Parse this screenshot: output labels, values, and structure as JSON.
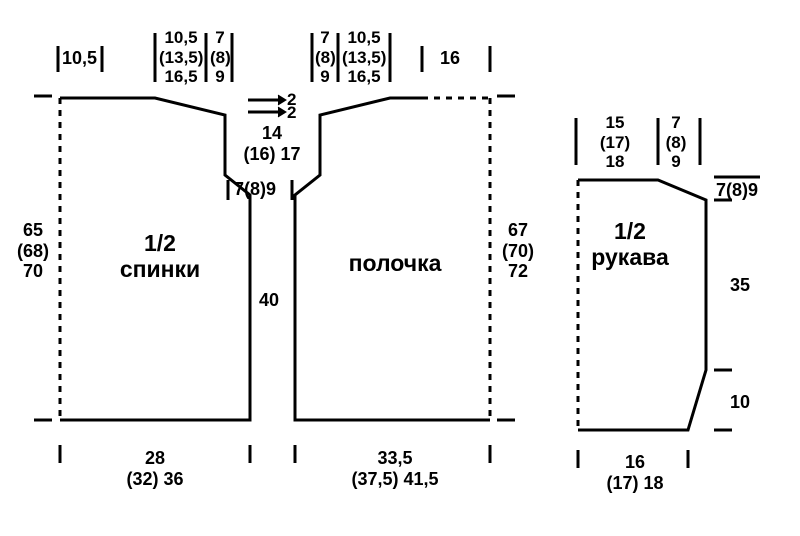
{
  "colors": {
    "stroke": "#000000",
    "background": "#ffffff"
  },
  "stroke_width": 3,
  "dash": "6,6",
  "pieces": {
    "back": {
      "label_top": "1/2",
      "label_bottom": "спинки"
    },
    "front": {
      "label": "полочка"
    },
    "sleeve": {
      "label_top": "1/2",
      "label_bottom": "рукава"
    }
  },
  "measurements": {
    "back_top_shoulder": "10,5",
    "back_top_neck": "10,5\n(13,5)\n16,5",
    "back_top_armhole": "7\n(8)\n9",
    "back_left_height": "65\n(68)\n70",
    "back_bottom_width": "28\n(32) 36",
    "center_arrows_a": "2",
    "center_arrows_b": "2",
    "center_armhole_height": "14\n(16) 17",
    "center_armhole_width": "7(8)9",
    "center_body": "40",
    "front_top_armhole": "7\n(8)\n9",
    "front_top_neck": "10,5\n(13,5)\n16,5",
    "front_top_flat": "16",
    "front_right_height": "67\n(70)\n72",
    "front_bottom_width": "33,5\n(37,5) 41,5",
    "sleeve_top_cap": "15\n(17)\n18",
    "sleeve_top_shoulder": "7\n(8)\n9",
    "sleeve_right_top": "7(8)9",
    "sleeve_right_body": "35",
    "sleeve_right_cuff": "10",
    "sleeve_bottom_width": "16\n(17) 18"
  }
}
